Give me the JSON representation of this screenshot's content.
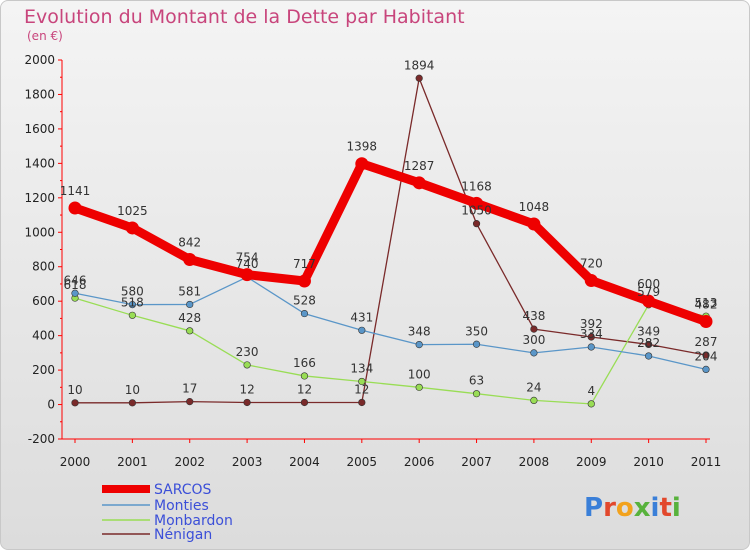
{
  "chart_data": {
    "type": "line",
    "title": "Evolution du Montant de la Dette par Habitant",
    "subtitle": "(en €)",
    "x": [
      "2000",
      "2001",
      "2002",
      "2003",
      "2004",
      "2005",
      "2006",
      "2007",
      "2008",
      "2009",
      "2010",
      "2011"
    ],
    "ylim": [
      -200,
      2000
    ],
    "yticks": [
      -200,
      0,
      200,
      400,
      600,
      800,
      1000,
      1200,
      1400,
      1600,
      1800,
      2000
    ],
    "grid": false,
    "legend_position": "bottom-left",
    "series": [
      {
        "name": "SARCOS",
        "color": "#ee0000",
        "values": [
          1141,
          1025,
          842,
          754,
          717,
          1398,
          1287,
          1168,
          1048,
          720,
          600,
          482
        ]
      },
      {
        "name": "Monties",
        "color": "#5a96c8",
        "values": [
          646,
          580,
          581,
          740,
          528,
          431,
          348,
          350,
          300,
          334,
          282,
          204
        ]
      },
      {
        "name": "Monbardon",
        "color": "#99dd55",
        "values": [
          618,
          518,
          428,
          230,
          166,
          134,
          100,
          63,
          24,
          4,
          579,
          513
        ]
      },
      {
        "name": "Nénigan",
        "color": "#7a2a2a",
        "values": [
          10,
          10,
          17,
          12,
          12,
          12,
          1894,
          1050,
          438,
          392,
          349,
          287
        ]
      }
    ]
  },
  "logo": {
    "text": "Proxiti",
    "colors": [
      "#3a7fd8",
      "#e2482c",
      "#f2a21d",
      "#58b23c",
      "#3a7fd8",
      "#e2482c",
      "#58b23c"
    ]
  }
}
